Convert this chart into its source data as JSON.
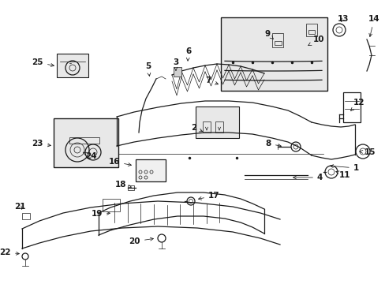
{
  "bg_color": "#ffffff",
  "line_color": "#1a1a1a",
  "box_fill": "#e8e8e8",
  "fig_width": 4.89,
  "fig_height": 3.6,
  "dpi": 100,
  "labels": {
    "1": [
      455,
      218,
      420,
      218
    ],
    "2": [
      248,
      163,
      265,
      170
    ],
    "3": [
      218,
      82,
      222,
      93
    ],
    "4": [
      400,
      228,
      360,
      228
    ],
    "5": [
      192,
      88,
      196,
      105
    ],
    "6": [
      237,
      68,
      240,
      78
    ],
    "7": [
      275,
      105,
      285,
      108
    ],
    "8": [
      352,
      185,
      368,
      186
    ],
    "9": [
      342,
      47,
      355,
      52
    ],
    "10": [
      398,
      55,
      388,
      60
    ],
    "11": [
      432,
      222,
      422,
      215
    ],
    "12": [
      450,
      133,
      443,
      148
    ],
    "13": [
      430,
      28,
      430,
      42
    ],
    "14": [
      471,
      28,
      468,
      55
    ],
    "15": [
      467,
      198,
      457,
      192
    ],
    "16": [
      160,
      208,
      172,
      213
    ],
    "17": [
      268,
      252,
      248,
      255
    ],
    "18": [
      168,
      237,
      178,
      240
    ],
    "19": [
      138,
      275,
      150,
      273
    ],
    "20": [
      185,
      308,
      192,
      302
    ],
    "21": [
      25,
      265,
      32,
      271
    ],
    "22": [
      20,
      325,
      30,
      322
    ],
    "23": [
      62,
      185,
      72,
      188
    ],
    "24": [
      112,
      200,
      105,
      195
    ],
    "25": [
      62,
      82,
      72,
      86
    ]
  }
}
